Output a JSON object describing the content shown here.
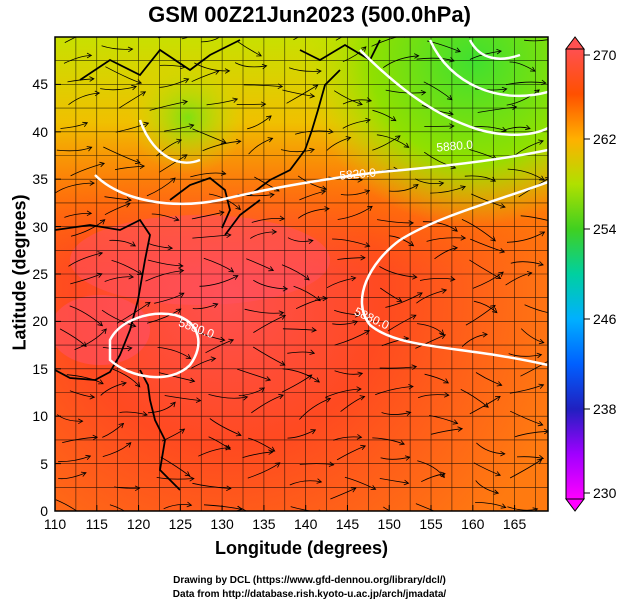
{
  "title": "GSM 00Z21Jun2023 (500.0hPa)",
  "map": {
    "xlabel": "Longitude (degrees)",
    "ylabel": "Latitude (degrees)",
    "x_ticks": [
      "110",
      "115",
      "120",
      "125",
      "130",
      "135",
      "140",
      "145",
      "150",
      "155",
      "160",
      "165"
    ],
    "y_ticks": [
      "0",
      "5",
      "10",
      "15",
      "20",
      "25",
      "30",
      "35",
      "40",
      "45"
    ],
    "lon_range": [
      110,
      169
    ],
    "lat_range": [
      0,
      50
    ],
    "contour_labels": [
      "5820.0",
      "5880.0",
      "5880.0",
      "5880.0"
    ],
    "field": "temperature (K)",
    "streamlines": "wind"
  },
  "colorbar": {
    "ticks": [
      "270",
      "262",
      "254",
      "246",
      "238",
      "230"
    ],
    "range": [
      230,
      270
    ],
    "colors": [
      "#ff00ff",
      "#8000ff",
      "#0000c0",
      "#0080ff",
      "#00e0e0",
      "#40d040",
      "#c0e000",
      "#ffa000",
      "#ff3000",
      "#ff5050"
    ]
  },
  "credits": {
    "line1": "Drawing by DCL (https://www.gfd-dennou.org/library/dcl/)",
    "line2": "Data from http://database.rish.kyoto-u.ac.jp/arch/jmadata/"
  }
}
